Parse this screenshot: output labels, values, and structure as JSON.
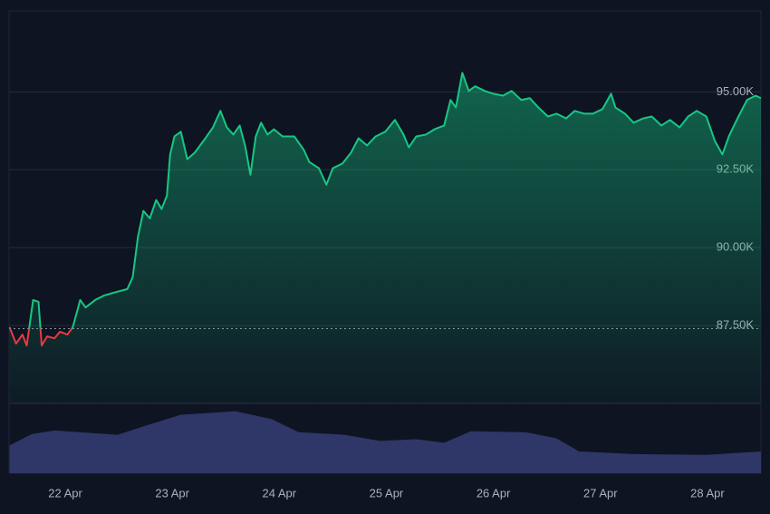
{
  "chart_data": {
    "type": "line",
    "x": [
      21.48,
      21.54,
      21.6,
      21.64,
      21.7,
      21.75,
      21.78,
      21.83,
      21.9,
      21.95,
      22.02,
      22.07,
      22.14,
      22.19,
      22.28,
      22.36,
      22.45,
      22.58,
      22.63,
      22.68,
      22.73,
      22.79,
      22.85,
      22.9,
      22.95,
      22.98,
      23.02,
      23.08,
      23.14,
      23.21,
      23.29,
      23.38,
      23.45,
      23.51,
      23.57,
      23.63,
      23.68,
      23.73,
      23.78,
      23.83,
      23.89,
      23.95,
      24.03,
      24.14,
      24.23,
      24.28,
      24.37,
      24.44,
      24.5,
      24.59,
      24.67,
      24.74,
      24.82,
      24.9,
      24.99,
      25.08,
      25.16,
      25.21,
      25.28,
      25.37,
      25.45,
      25.54,
      25.6,
      25.65,
      25.71,
      25.77,
      25.83,
      25.92,
      26.0,
      26.09,
      26.17,
      26.26,
      26.34,
      26.42,
      26.51,
      26.59,
      26.68,
      26.76,
      26.85,
      26.93,
      27.02,
      27.1,
      27.14,
      27.23,
      27.31,
      27.4,
      27.48,
      27.57,
      27.65,
      27.74,
      27.82,
      27.9,
      27.99,
      28.07,
      28.14,
      28.2,
      28.29,
      28.37,
      28.45,
      28.5
    ],
    "series": [
      {
        "color": "#16c784",
        "down_color": "#ea3943",
        "values": [
          87440,
          86920,
          87210,
          86860,
          88320,
          88260,
          86860,
          87150,
          87090,
          87300,
          87210,
          87440,
          88320,
          88080,
          88320,
          88460,
          88550,
          88670,
          89050,
          90360,
          91180,
          90940,
          91530,
          91240,
          91670,
          92990,
          93570,
          93720,
          92840,
          93050,
          93420,
          93860,
          94390,
          93860,
          93630,
          93920,
          93280,
          92340,
          93570,
          94010,
          93630,
          93800,
          93570,
          93570,
          93130,
          92750,
          92550,
          92020,
          92550,
          92700,
          93050,
          93510,
          93280,
          93570,
          93720,
          94100,
          93630,
          93220,
          93570,
          93630,
          93800,
          93920,
          94740,
          94500,
          95610,
          95030,
          95180,
          95030,
          94940,
          94880,
          95030,
          94740,
          94800,
          94500,
          94210,
          94300,
          94150,
          94390,
          94300,
          94300,
          94450,
          94940,
          94500,
          94300,
          94010,
          94150,
          94210,
          93920,
          94100,
          93860,
          94210,
          94390,
          94210,
          93420,
          92990,
          93570,
          94210,
          94740,
          94880,
          94800
        ]
      }
    ],
    "baseline": 87400,
    "xlim": [
      21.475,
      28.5
    ],
    "xticks": [
      {
        "value": 22,
        "label": "22 Apr"
      },
      {
        "value": 23,
        "label": "23 Apr"
      },
      {
        "value": 24,
        "label": "24 Apr"
      },
      {
        "value": 25,
        "label": "25 Apr"
      },
      {
        "value": 26,
        "label": "26 Apr"
      },
      {
        "value": 27,
        "label": "27 Apr"
      },
      {
        "value": 28,
        "label": "28 Apr"
      }
    ],
    "ylim": [
      85000,
      97600
    ],
    "yticks": [
      {
        "value": 87500,
        "label": "87.50K"
      },
      {
        "value": 90000,
        "label": "90.00K"
      },
      {
        "value": 92500,
        "label": "92.50K"
      },
      {
        "value": 95000,
        "label": "95.00K"
      }
    ],
    "grid": true,
    "volume": {
      "color": "#2f3768",
      "x": [
        21.48,
        21.69,
        21.9,
        22.49,
        22.74,
        23.08,
        23.59,
        23.93,
        24.18,
        24.61,
        24.94,
        25.28,
        25.54,
        25.79,
        26.3,
        26.59,
        26.8,
        27.31,
        27.99,
        28.5
      ],
      "values": [
        32,
        45,
        49,
        44,
        54,
        67,
        71,
        62,
        47,
        44,
        37,
        39,
        35,
        48,
        47,
        40,
        25,
        22,
        21,
        25
      ],
      "vlim": [
        0,
        80
      ]
    }
  }
}
